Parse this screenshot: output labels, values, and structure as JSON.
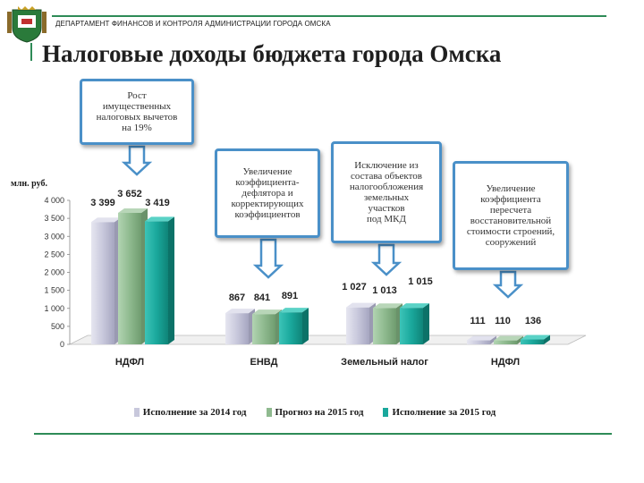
{
  "header": {
    "department": "ДЕПАРТАМЕНТ ФИНАНСОВ И КОНТРОЛЯ АДМИНИСТРАЦИИ ГОРОДА ОМСКА",
    "title": "Налоговые доходы бюджета города Омска"
  },
  "callouts": [
    {
      "text": "Рост\nимущественных\nналоговых вычетов\nна 19%"
    },
    {
      "text": "Увеличение\nкоэффициента-\nдефлятора и\nкорректирующих\nкоэффициентов"
    },
    {
      "text": "Исключение из\nсостава объектов\nналогообложения\nземельных\nучастков\nпод МКД"
    },
    {
      "text": "Увеличение\nкоэффициента\nпересчета\nвосстановительной\nстоимости строений,\nсооружений"
    }
  ],
  "colors": {
    "series_2014": "#c8c8dc",
    "series_2015_forecast": "#8fba8f",
    "series_2015_actual": "#1aa89c",
    "callout_border": "#4a90c8",
    "accent_line": "#2e8b57"
  },
  "chart_data": {
    "type": "bar",
    "unit_label": "млн. руб.",
    "categories": [
      "НДФЛ",
      "ЕНВД",
      "Земельный налог",
      "НДФЛ"
    ],
    "series": [
      {
        "name": "Исполнение за 2014 год",
        "values": [
          3399,
          867,
          1027,
          111
        ]
      },
      {
        "name": "Прогноз на 2015 год",
        "values": [
          3652,
          841,
          1013,
          110
        ]
      },
      {
        "name": "Исполнение за 2015 год",
        "values": [
          3419,
          891,
          1015,
          136
        ]
      }
    ],
    "value_labels": [
      [
        "3 399",
        "867",
        "1 027",
        "111"
      ],
      [
        "3 652",
        "841",
        "1 013",
        "110"
      ],
      [
        "3 419",
        "891",
        "1 015",
        "136"
      ]
    ],
    "yticks": [
      "0",
      "500",
      "1 000",
      "1 500",
      "2 000",
      "2 500",
      "3 000",
      "3 500",
      "4 000"
    ],
    "ylim": [
      0,
      4000
    ],
    "legend_position": "bottom",
    "grid": false
  }
}
